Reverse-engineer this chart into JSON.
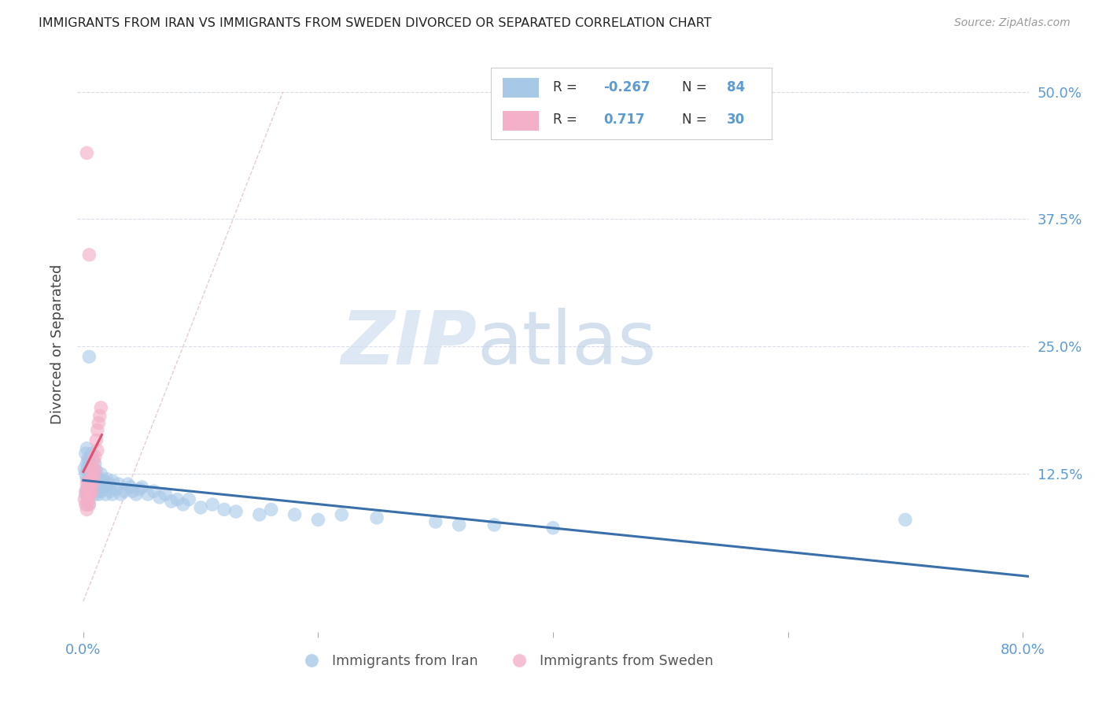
{
  "title": "IMMIGRANTS FROM IRAN VS IMMIGRANTS FROM SWEDEN DIVORCED OR SEPARATED CORRELATION CHART",
  "source": "Source: ZipAtlas.com",
  "tick_color": "#5b9bd5",
  "ylabel": "Divorced or Separated",
  "xlim": [
    -0.005,
    0.805
  ],
  "ylim": [
    -0.03,
    0.535
  ],
  "iran_color": "#a8c8e8",
  "sweden_color": "#f4b0c8",
  "iran_line_color": "#3a6faa",
  "sweden_line_color": "#e05070",
  "diagonal_color": "#e0c0c8",
  "grid_color": "#d8dde8",
  "watermark_zip_color": "#d0dff0",
  "watermark_atlas_color": "#b8cce4",
  "legend_iran_label": "Immigrants from Iran",
  "legend_sweden_label": "Immigrants from Sweden",
  "stats_iran_R": "-0.267",
  "stats_iran_N": "84",
  "stats_sweden_R": "0.717",
  "stats_sweden_N": "30",
  "iran_x": [
    0.001,
    0.002,
    0.002,
    0.002,
    0.003,
    0.003,
    0.003,
    0.003,
    0.003,
    0.004,
    0.004,
    0.004,
    0.004,
    0.005,
    0.005,
    0.005,
    0.005,
    0.006,
    0.006,
    0.006,
    0.006,
    0.007,
    0.007,
    0.007,
    0.008,
    0.008,
    0.008,
    0.009,
    0.009,
    0.01,
    0.01,
    0.01,
    0.011,
    0.011,
    0.012,
    0.012,
    0.013,
    0.013,
    0.014,
    0.015,
    0.015,
    0.016,
    0.018,
    0.018,
    0.019,
    0.02,
    0.022,
    0.023,
    0.025,
    0.025,
    0.028,
    0.03,
    0.032,
    0.035,
    0.038,
    0.04,
    0.042,
    0.045,
    0.048,
    0.05,
    0.055,
    0.06,
    0.065,
    0.07,
    0.075,
    0.08,
    0.085,
    0.09,
    0.1,
    0.11,
    0.12,
    0.13,
    0.15,
    0.16,
    0.18,
    0.2,
    0.22,
    0.25,
    0.3,
    0.32,
    0.35,
    0.4,
    0.7,
    0.005
  ],
  "iran_y": [
    0.13,
    0.125,
    0.145,
    0.105,
    0.12,
    0.135,
    0.11,
    0.15,
    0.095,
    0.13,
    0.118,
    0.105,
    0.14,
    0.125,
    0.115,
    0.138,
    0.095,
    0.128,
    0.118,
    0.112,
    0.135,
    0.122,
    0.11,
    0.145,
    0.118,
    0.108,
    0.13,
    0.115,
    0.125,
    0.135,
    0.115,
    0.105,
    0.128,
    0.118,
    0.122,
    0.108,
    0.115,
    0.105,
    0.118,
    0.125,
    0.108,
    0.115,
    0.118,
    0.112,
    0.105,
    0.12,
    0.115,
    0.108,
    0.118,
    0.105,
    0.11,
    0.115,
    0.105,
    0.108,
    0.115,
    0.112,
    0.108,
    0.105,
    0.11,
    0.112,
    0.105,
    0.108,
    0.102,
    0.105,
    0.098,
    0.1,
    0.095,
    0.1,
    0.092,
    0.095,
    0.09,
    0.088,
    0.085,
    0.09,
    0.085,
    0.08,
    0.085,
    0.082,
    0.078,
    0.075,
    0.075,
    0.072,
    0.08,
    0.24
  ],
  "sweden_x": [
    0.001,
    0.002,
    0.002,
    0.003,
    0.003,
    0.003,
    0.004,
    0.004,
    0.005,
    0.005,
    0.005,
    0.006,
    0.006,
    0.007,
    0.007,
    0.007,
    0.008,
    0.008,
    0.009,
    0.009,
    0.01,
    0.01,
    0.011,
    0.012,
    0.012,
    0.013,
    0.014,
    0.015,
    0.003,
    0.005
  ],
  "sweden_y": [
    0.1,
    0.108,
    0.095,
    0.115,
    0.105,
    0.09,
    0.118,
    0.098,
    0.112,
    0.105,
    0.095,
    0.118,
    0.105,
    0.128,
    0.118,
    0.108,
    0.13,
    0.115,
    0.138,
    0.122,
    0.142,
    0.128,
    0.158,
    0.168,
    0.148,
    0.175,
    0.182,
    0.19,
    0.44,
    0.34
  ]
}
